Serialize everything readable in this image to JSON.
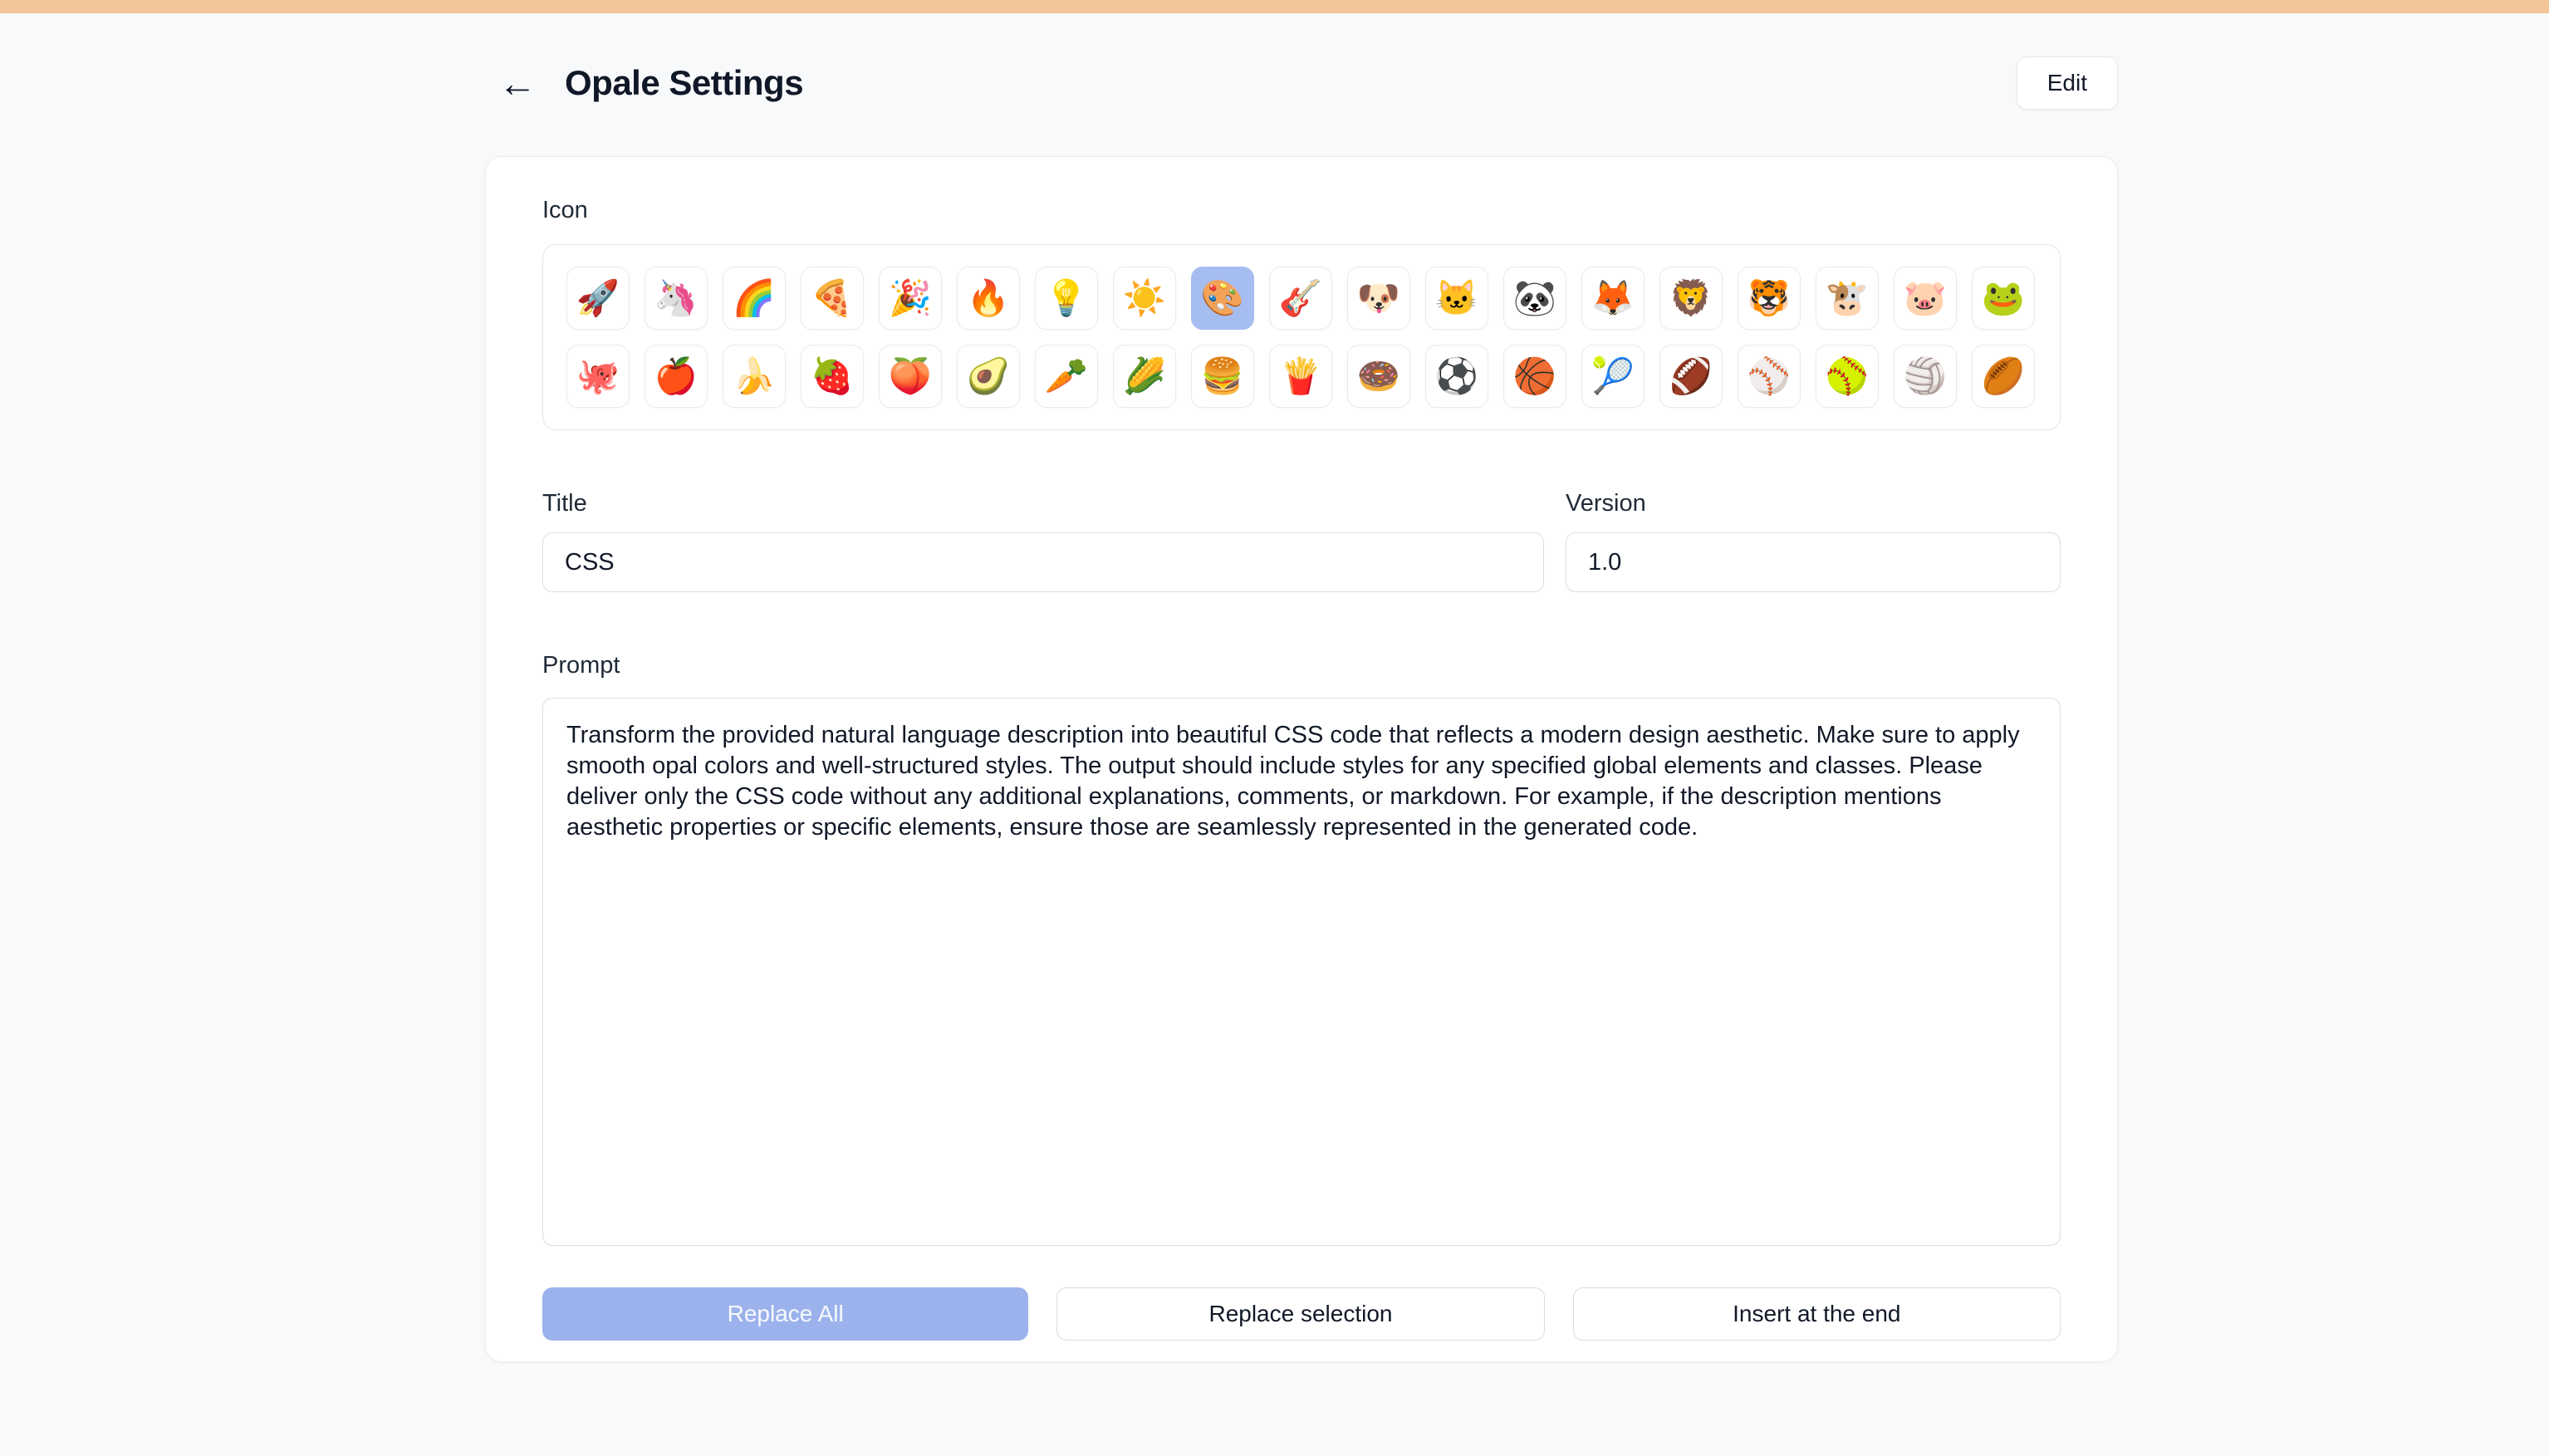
{
  "colors": {
    "top_bar": "#f2c699",
    "page_background": "#f8f9fa",
    "primary_button": "#9cb2ec",
    "selected_icon_background": "#a6bdf2"
  },
  "header": {
    "back_icon": "←",
    "title": "Opale Settings",
    "edit_button": "Edit"
  },
  "settings": {
    "icon_label": "Icon",
    "icons": {
      "selected_row": 0,
      "selected_col": 8,
      "rows": [
        [
          {
            "glyph": "🚀",
            "name": "rocket"
          },
          {
            "glyph": "🦄",
            "name": "unicorn"
          },
          {
            "glyph": "🌈",
            "name": "rainbow"
          },
          {
            "glyph": "🍕",
            "name": "pizza"
          },
          {
            "glyph": "🎉",
            "name": "party-popper"
          },
          {
            "glyph": "🔥",
            "name": "fire"
          },
          {
            "glyph": "💡",
            "name": "light-bulb"
          },
          {
            "glyph": "☀️",
            "name": "sun"
          },
          {
            "glyph": "🎨",
            "name": "artist-palette"
          },
          {
            "glyph": "🎸",
            "name": "guitar"
          },
          {
            "glyph": "🐶",
            "name": "dog-face"
          },
          {
            "glyph": "🐱",
            "name": "cat-face"
          },
          {
            "glyph": "🐼",
            "name": "panda"
          },
          {
            "glyph": "🦊",
            "name": "fox"
          },
          {
            "glyph": "🦁",
            "name": "lion"
          },
          {
            "glyph": "🐯",
            "name": "tiger-face"
          },
          {
            "glyph": "🐮",
            "name": "cow-face"
          },
          {
            "glyph": "🐷",
            "name": "pig-face"
          },
          {
            "glyph": "🐸",
            "name": "frog"
          }
        ],
        [
          {
            "glyph": "🐙",
            "name": "octopus"
          },
          {
            "glyph": "🍎",
            "name": "red-apple"
          },
          {
            "glyph": "🍌",
            "name": "banana"
          },
          {
            "glyph": "🍓",
            "name": "strawberry"
          },
          {
            "glyph": "🍑",
            "name": "peach"
          },
          {
            "glyph": "🥑",
            "name": "avocado"
          },
          {
            "glyph": "🥕",
            "name": "carrot"
          },
          {
            "glyph": "🌽",
            "name": "corn"
          },
          {
            "glyph": "🍔",
            "name": "hamburger"
          },
          {
            "glyph": "🍟",
            "name": "french-fries"
          },
          {
            "glyph": "🍩",
            "name": "doughnut"
          },
          {
            "glyph": "⚽",
            "name": "soccer-ball"
          },
          {
            "glyph": "🏀",
            "name": "basketball"
          },
          {
            "glyph": "🎾",
            "name": "tennis"
          },
          {
            "glyph": "🏈",
            "name": "american-football"
          },
          {
            "glyph": "⚾",
            "name": "baseball"
          },
          {
            "glyph": "🥎",
            "name": "softball"
          },
          {
            "glyph": "🏐",
            "name": "volleyball"
          },
          {
            "glyph": "🏉",
            "name": "rugby-football"
          }
        ]
      ]
    },
    "title_field": {
      "label": "Title",
      "value": "CSS"
    },
    "version_field": {
      "label": "Version",
      "value": "1.0"
    },
    "prompt_field": {
      "label": "Prompt",
      "value": "Transform the provided natural language description into beautiful CSS code that reflects a modern design aesthetic. Make sure to apply smooth opal colors and well-structured styles. The output should include styles for any specified global elements and classes. Please deliver only the CSS code without any additional explanations, comments, or markdown. For example, if the description mentions aesthetic properties or specific elements, ensure those are seamlessly represented in the generated code."
    },
    "actions": [
      {
        "label": "Replace All",
        "style": "primary",
        "name": "replace-all-button"
      },
      {
        "label": "Replace selection",
        "style": "secondary",
        "name": "replace-selection-button"
      },
      {
        "label": "Insert at the end",
        "style": "secondary",
        "name": "insert-at-end-button"
      }
    ]
  }
}
